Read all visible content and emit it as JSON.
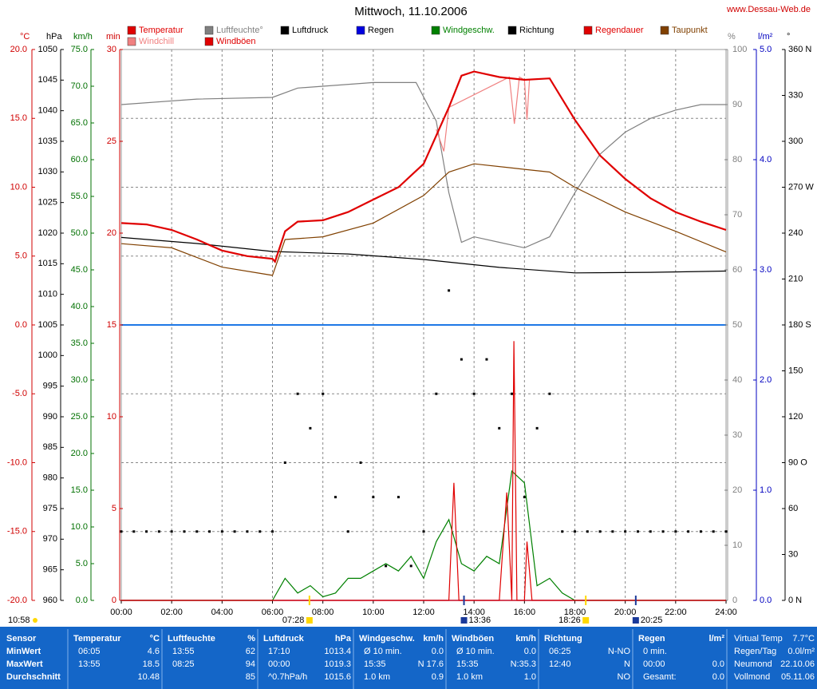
{
  "header": {
    "title": "Mittwoch, 11.10.2006",
    "site": "www.Dessau-Web.de"
  },
  "chart_data": {
    "type": "line",
    "grid": true,
    "xlim": [
      0,
      24
    ],
    "xticks": [
      {
        "value": 0,
        "label": "00:00"
      },
      {
        "value": 2,
        "label": "02:00"
      },
      {
        "value": 4,
        "label": "04:00"
      },
      {
        "value": 6,
        "label": "06:00"
      },
      {
        "value": 8,
        "label": "08:00"
      },
      {
        "value": 10,
        "label": "10:00"
      },
      {
        "value": 12,
        "label": "12:00"
      },
      {
        "value": 14,
        "label": "14:00"
      },
      {
        "value": 16,
        "label": "16:00"
      },
      {
        "value": 18,
        "label": "18:00"
      },
      {
        "value": 20,
        "label": "20:00"
      },
      {
        "value": 22,
        "label": "22:00"
      },
      {
        "value": 24,
        "label": "24:00"
      }
    ],
    "axes": [
      {
        "title": "°C",
        "color": "#d00000",
        "ylim": [
          -20,
          20
        ],
        "yticks": [
          {
            "value": 20,
            "label": "20.0"
          },
          {
            "value": 15,
            "label": "15.0"
          },
          {
            "value": 10,
            "label": "10.0"
          },
          {
            "value": 5,
            "label": "5.0"
          },
          {
            "value": 0,
            "label": "0.0"
          },
          {
            "value": -5,
            "label": "-5.0"
          },
          {
            "value": -10,
            "label": "-10.0"
          },
          {
            "value": -15,
            "label": "-15.0"
          },
          {
            "value": -20,
            "label": "-20.0"
          }
        ]
      },
      {
        "title": "hPa",
        "color": "#000000",
        "ylim": [
          960,
          1050
        ],
        "yticks": [
          1050,
          1045,
          1040,
          1035,
          1030,
          1025,
          1020,
          1015,
          1010,
          1005,
          1000,
          995,
          990,
          985,
          980,
          975,
          970,
          965,
          960
        ]
      },
      {
        "title": "km/h",
        "color": "#007000",
        "ylim": [
          0,
          75
        ],
        "yticks": [
          {
            "value": 75,
            "label": "75.0"
          },
          {
            "value": 70,
            "label": "70.0"
          },
          {
            "value": 65,
            "label": "65.0"
          },
          {
            "value": 60,
            "label": "60.0"
          },
          {
            "value": 55,
            "label": "55.0"
          },
          {
            "value": 50,
            "label": "50.0"
          },
          {
            "value": 45,
            "label": "45.0"
          },
          {
            "value": 40,
            "label": "40.0"
          },
          {
            "value": 35,
            "label": "35.0"
          },
          {
            "value": 30,
            "label": "30.0"
          },
          {
            "value": 25,
            "label": "25.0"
          },
          {
            "value": 20,
            "label": "20.0"
          },
          {
            "value": 15,
            "label": "15.0"
          },
          {
            "value": 10,
            "label": "10.0"
          },
          {
            "value": 5,
            "label": "5.0"
          },
          {
            "value": 0,
            "label": "0.0"
          }
        ]
      },
      {
        "title": "min",
        "color": "#d00000",
        "ylim": [
          0,
          30
        ],
        "yticks": [
          30,
          25,
          20,
          15,
          10,
          5,
          0
        ]
      },
      {
        "title": "%",
        "color": "#808080",
        "ylim": [
          0,
          100
        ],
        "yticks": [
          100,
          90,
          80,
          70,
          60,
          50,
          40,
          30,
          20,
          10,
          0
        ]
      },
      {
        "title": "l/m²",
        "color": "#0000c0",
        "ylim": [
          0,
          5
        ],
        "yticks": [
          {
            "value": 5,
            "label": "5.0"
          },
          {
            "value": 4,
            "label": "4.0"
          },
          {
            "value": 3,
            "label": "3.0"
          },
          {
            "value": 2,
            "label": "2.0"
          },
          {
            "value": 1,
            "label": "1.0"
          },
          {
            "value": 0,
            "label": "0.0"
          }
        ]
      },
      {
        "title": "°",
        "color": "#000000",
        "ylim": [
          0,
          360
        ],
        "yticks": [
          {
            "value": 360,
            "label": "360 N"
          },
          330,
          300,
          {
            "value": 270,
            "label": "270 W"
          },
          240,
          210,
          {
            "value": 180,
            "label": "180 S"
          },
          150,
          120,
          {
            "value": 90,
            "label": "90 O"
          },
          60,
          30,
          {
            "value": 0,
            "label": "0 N"
          }
        ]
      }
    ],
    "zero_line": {
      "axis": 0,
      "value": 0,
      "color": "#1e78e6"
    },
    "series": [
      {
        "name": "Temperatur",
        "color": "#e00000",
        "axis": 0,
        "x": [
          0,
          1,
          2,
          3,
          4,
          5,
          6,
          6.1,
          6.5,
          7,
          8,
          9,
          10,
          11,
          12,
          13,
          13.5,
          14,
          15,
          16,
          17,
          18,
          19,
          20,
          21,
          22,
          23,
          24
        ],
        "values": [
          7.4,
          7.3,
          6.9,
          6.2,
          5.4,
          5.0,
          4.8,
          4.6,
          6.8,
          7.5,
          7.6,
          8.2,
          9.1,
          10.0,
          11.7,
          15.8,
          18.1,
          18.4,
          18.0,
          17.8,
          17.9,
          14.9,
          12.3,
          10.6,
          9.2,
          8.2,
          7.5,
          6.9
        ]
      },
      {
        "name": "Luftfeuchte°",
        "color": "#808080",
        "axis": 4,
        "x": [
          0,
          3,
          6,
          7,
          10,
          11.7,
          12.5,
          13,
          13.5,
          14,
          15,
          16,
          17,
          18,
          19,
          20,
          21,
          22,
          23,
          24
        ],
        "values": [
          90,
          91,
          91.3,
          93,
          94,
          94,
          87,
          74,
          65,
          66,
          65,
          64,
          66,
          74,
          81,
          85,
          87.5,
          89,
          90,
          90
        ]
      },
      {
        "name": "Luftdruck",
        "color": "#000000",
        "axis": 1,
        "x": [
          0,
          3,
          6,
          9,
          12,
          15,
          18,
          21,
          24
        ],
        "values": [
          1019.3,
          1018.3,
          1017.0,
          1016.6,
          1015.7,
          1014.4,
          1013.5,
          1013.6,
          1013.8
        ]
      },
      {
        "name": "Regen",
        "color": "#0000e0",
        "axis": 5,
        "x": [
          0,
          24
        ],
        "values": [
          0,
          0
        ]
      },
      {
        "name": "Windgeschw.",
        "color": "#008000",
        "axis": 2,
        "x": [
          0,
          0.5,
          1,
          1.5,
          2,
          2.5,
          3,
          3.5,
          4,
          4.5,
          5,
          5.5,
          6,
          6.5,
          7,
          7.5,
          8,
          8.5,
          9,
          9.5,
          10,
          10.5,
          11,
          11.5,
          12,
          12.5,
          13,
          13.5,
          14,
          14.5,
          15,
          15.5,
          16,
          16.5,
          17,
          17.5,
          18,
          18.5,
          19,
          19.5,
          20,
          20.5,
          21,
          21.5,
          22,
          22.5,
          23,
          23.5,
          24
        ],
        "values": [
          0,
          0,
          0,
          0,
          0,
          0,
          0,
          0,
          0,
          0,
          0,
          0,
          0,
          3,
          1,
          2,
          0.5,
          1,
          3,
          3,
          4,
          5,
          4,
          6,
          3,
          8,
          11,
          5,
          4,
          6,
          5,
          17.6,
          16,
          2,
          3,
          1,
          0,
          0,
          0,
          0,
          0,
          0,
          0,
          0,
          0,
          0,
          0,
          0,
          0
        ]
      },
      {
        "name": "Richtung",
        "color": "#000000",
        "axis": 6,
        "mark": "dot",
        "x": [
          0,
          0.5,
          1,
          1.5,
          2,
          2.5,
          3,
          3.5,
          4,
          4.5,
          5,
          5.5,
          6,
          6.5,
          7,
          7.5,
          8,
          8.5,
          9,
          9.5,
          10,
          10.5,
          11,
          11.5,
          12,
          12.5,
          13,
          13.5,
          14,
          14.5,
          15,
          15.5,
          16,
          16.5,
          17,
          17.5,
          18,
          18.5,
          19,
          19.5,
          20,
          20.5,
          21,
          21.5,
          22,
          22.5,
          23,
          23.5,
          24
        ],
        "values": [
          45,
          45,
          45,
          45,
          45,
          45,
          45,
          45,
          45,
          45,
          45,
          45,
          45,
          90,
          135,
          112.5,
          135,
          67.5,
          45,
          90,
          67.5,
          22.5,
          67.5,
          22.5,
          45,
          135,
          202.5,
          157.5,
          135,
          157.5,
          112.5,
          135,
          67.5,
          112.5,
          135,
          45,
          45,
          45,
          45,
          45,
          45,
          45,
          45,
          45,
          45,
          45,
          45,
          45,
          45
        ]
      },
      {
        "name": "Regendauer",
        "color": "#e00000",
        "axis": 3,
        "x": [
          0,
          24
        ],
        "values": [
          0,
          0
        ]
      },
      {
        "name": "Taupunkt",
        "color": "#804000",
        "axis": 0,
        "x": [
          0,
          2,
          4,
          6,
          6.5,
          8,
          10,
          12,
          13,
          14,
          16,
          17,
          18,
          20,
          22,
          24
        ],
        "values": [
          5.9,
          5.6,
          4.2,
          3.6,
          6.2,
          6.4,
          7.4,
          9.4,
          11.1,
          11.7,
          11.3,
          11.1,
          10.0,
          8.2,
          6.8,
          5.3
        ]
      },
      {
        "name": "Windchill",
        "color": "#f08080",
        "axis": 0,
        "x": [
          12.5,
          12.8,
          13,
          15.4,
          15.6,
          15.8,
          16,
          16.1,
          16.2
        ],
        "values": [
          14.2,
          12.6,
          15.8,
          18.0,
          14.6,
          18.0,
          17.8,
          14.9,
          17.8
        ]
      },
      {
        "name": "Windböen",
        "color": "#e00000",
        "axis": 2,
        "x": [
          0,
          13,
          13.2,
          13.4,
          15,
          15.1,
          15.3,
          15.5,
          15.58,
          15.7,
          16,
          16.1,
          16.3,
          24
        ],
        "values": [
          0,
          0,
          16,
          0,
          0,
          5,
          14.7,
          0,
          35.3,
          0,
          0,
          8,
          0,
          0
        ]
      }
    ],
    "note": "10:58",
    "markers": [
      {
        "label": "07:28",
        "x": 7.467,
        "color": "#ffd800"
      },
      {
        "label": "13:36",
        "x": 13.6,
        "color": "#1a3a9a"
      },
      {
        "label": "18:26",
        "x": 18.433,
        "color": "#ffd800"
      },
      {
        "label": "20:25",
        "x": 20.417,
        "color": "#1a3a9a"
      }
    ]
  },
  "table": {
    "row_labels": [
      "MinWert",
      "MaxWert",
      "Durchschnitt"
    ],
    "columns": [
      {
        "title": "Sensor"
      },
      {
        "title": "Temperatur",
        "unit": "°C",
        "cells": [
          [
            "06:05",
            "4.6"
          ],
          [
            "13:55",
            "18.5"
          ],
          [
            null,
            "10.48"
          ]
        ]
      },
      {
        "title": "Luftfeuchte",
        "unit": "%",
        "cells": [
          [
            "13:55",
            "62"
          ],
          [
            "08:25",
            "94"
          ],
          [
            null,
            "85"
          ]
        ]
      },
      {
        "title": "Luftdruck",
        "unit": "hPa",
        "cells": [
          [
            "17:10",
            "1013.4"
          ],
          [
            "00:00",
            "1019.3"
          ],
          [
            "^0.7hPa/h",
            "1015.6"
          ]
        ]
      },
      {
        "title": "Windgeschw.",
        "unit": "km/h",
        "cells": [
          [
            "Ø 10 min.",
            "0.0"
          ],
          [
            "15:35",
            "N 17.6"
          ],
          [
            "1.0 km",
            "0.9"
          ]
        ]
      },
      {
        "title": "Windböen",
        "unit": "km/h",
        "cells": [
          [
            "Ø 10 min.",
            "0.0"
          ],
          [
            "15:35",
            "N:35.3"
          ],
          [
            "1.0 km",
            "1.0"
          ]
        ]
      },
      {
        "title": "Richtung",
        "cells": [
          [
            "06:25",
            "N-NO"
          ],
          [
            "12:40",
            "N"
          ],
          [
            null,
            "NO"
          ]
        ]
      },
      {
        "title": "Regen",
        "unit": "l/m²",
        "cells": [
          [
            "0 min.",
            null
          ],
          [
            "00:00",
            "0.0"
          ],
          [
            "Gesamt:",
            "0.0"
          ]
        ]
      }
    ],
    "info": [
      [
        "Virtual Temp",
        "7.7°C"
      ],
      [
        "Regen/Tag",
        "0.0l/m²"
      ],
      [
        "Neumond",
        "22.10.06"
      ],
      [
        "Vollmond",
        "05.11.06"
      ]
    ]
  }
}
